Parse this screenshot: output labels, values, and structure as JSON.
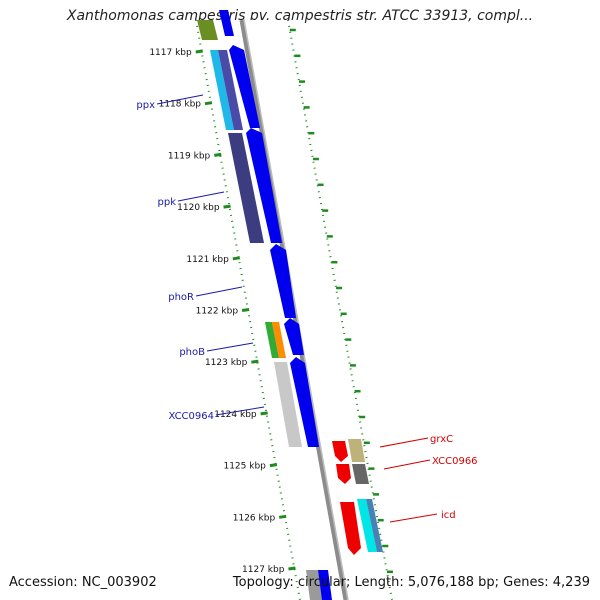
{
  "title": "Xanthomonas campestris pv. campestris str. ATCC 33913, compl...",
  "accession": "Accession: NC_003902",
  "summary": "Topology: circular; Length: 5,076,188 bp; Genes: 4,239",
  "colors": {
    "backbone": "#8c8c8c",
    "tick": "#1f8a1f",
    "forward_gene": "#0000ee",
    "reverse_gene": "#ee0000",
    "left_label": "#1a1aaa",
    "right_label": "#d40000"
  },
  "ticks": [
    {
      "label": "1117 kbp"
    },
    {
      "label": "1118 kbp"
    },
    {
      "label": "1119 kbp"
    },
    {
      "label": "1120 kbp"
    },
    {
      "label": "1121 kbp"
    },
    {
      "label": "1122 kbp"
    },
    {
      "label": "1123 kbp"
    },
    {
      "label": "1124 kbp"
    },
    {
      "label": "1125 kbp"
    },
    {
      "label": "1126 kbp"
    },
    {
      "label": "1127 kbp"
    }
  ],
  "left_labels": [
    {
      "label": "ppx"
    },
    {
      "label": "ppk"
    },
    {
      "label": "phoR"
    },
    {
      "label": "phoB"
    },
    {
      "label": "XCC0964"
    }
  ],
  "right_labels": [
    {
      "label": "grxC"
    },
    {
      "label": "XCC0966"
    },
    {
      "label": "icd"
    }
  ]
}
